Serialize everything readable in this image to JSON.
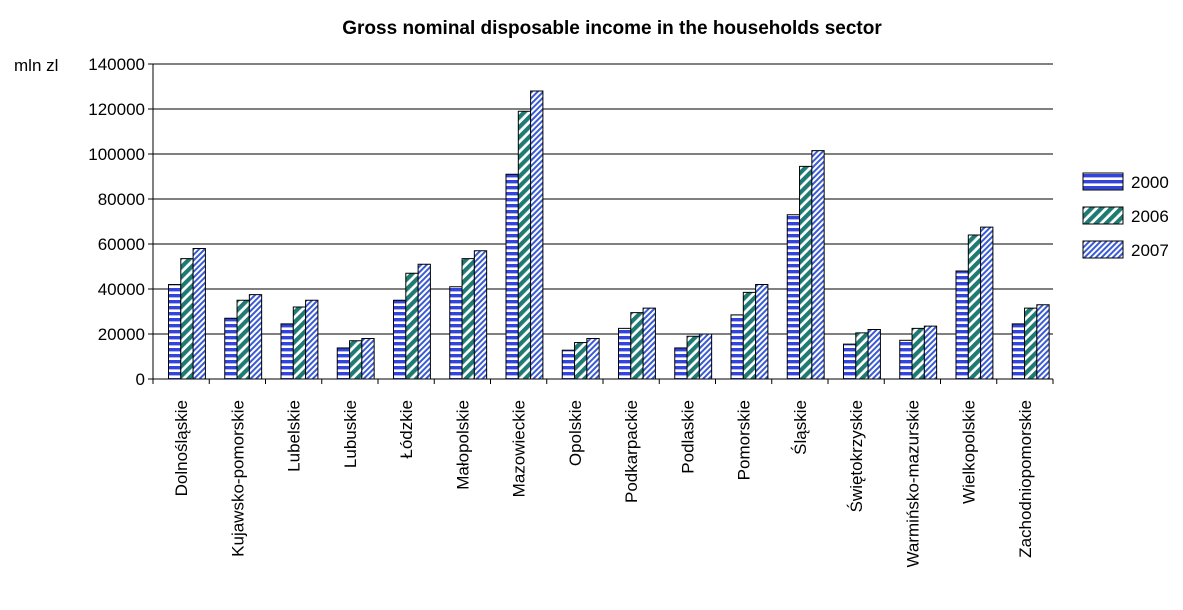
{
  "chart_data": {
    "type": "bar",
    "title": "Gross nominal disposable income in the households sector",
    "ylabel": "mln zl",
    "xlabel": "",
    "ylim": [
      0,
      140000
    ],
    "yticks": [
      "0",
      "20000",
      "40000",
      "60000",
      "80000",
      "100000",
      "120000",
      "140000"
    ],
    "grid": true,
    "legend_position": "right",
    "categories": [
      "Dolnośląskie",
      "Kujawsko-pomorskie",
      "Lubelskie",
      "Lubuskie",
      "Łódzkie",
      "Małopolskie",
      "Mazowieckie",
      "Opolskie",
      "Podkarpackie",
      "Podlaskie",
      "Pomorskie",
      "Śląskie",
      "Świętokrzyskie",
      "Warmińsko-mazurskie",
      "Wielkopolskie",
      "Zachodniopomorskie"
    ],
    "series": [
      {
        "name": "2000",
        "color": "#3344dd",
        "values": [
          42000,
          27000,
          24500,
          13800,
          35000,
          41000,
          91000,
          12800,
          22500,
          13800,
          28500,
          73000,
          15500,
          17200,
          48000,
          24500
        ]
      },
      {
        "name": "2006",
        "color": "#1f7a73",
        "values": [
          53500,
          35000,
          32000,
          17000,
          47000,
          53500,
          119000,
          16200,
          29500,
          19000,
          38500,
          94500,
          20500,
          22500,
          64000,
          31500
        ]
      },
      {
        "name": "2007",
        "color": "#3a5bd4",
        "values": [
          58000,
          37500,
          35000,
          18000,
          51000,
          57000,
          128000,
          18000,
          31500,
          20000,
          42000,
          101500,
          22000,
          23500,
          67500,
          33000
        ]
      }
    ]
  }
}
